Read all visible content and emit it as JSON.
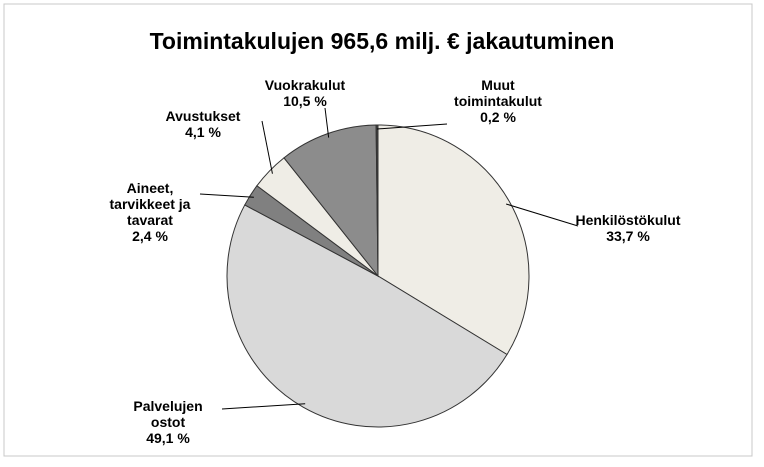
{
  "chart_data": {
    "type": "pie",
    "title": "Toimintakulujen 965,6 milj. € jakautuminen",
    "categories": [
      "Henkilöstökulut",
      "Palvelujen ostot",
      "Aineet, tarvikkeet ja tavarat",
      "Avustukset",
      "Vuokrakulut",
      "Muut toimintakulut"
    ],
    "values": [
      33.7,
      49.1,
      2.4,
      4.1,
      10.5,
      0.2
    ],
    "value_labels": [
      "33,7 %",
      "49,1 %",
      "2,4 %",
      "4,1 %",
      "10,5 %",
      "0,2 %"
    ],
    "colors": [
      "#efede6",
      "#d9d9d9",
      "#808080",
      "#efede6",
      "#8c8c8c",
      "#404040"
    ]
  }
}
